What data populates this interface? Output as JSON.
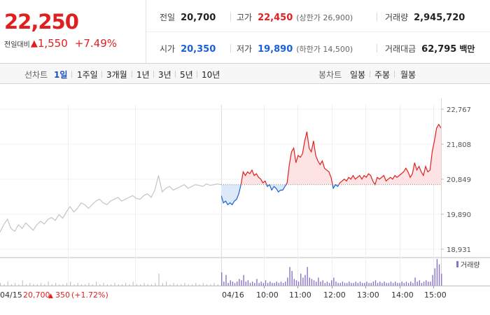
{
  "header": {
    "price": "22,250",
    "change_label": "전일대비",
    "change_arrow": "▲",
    "change_amount": "1,550",
    "change_pct": "+7.49%",
    "stats": {
      "prev_close": {
        "label": "전일",
        "value": "20,700"
      },
      "high": {
        "label": "고가",
        "value": "22,450",
        "sub": "(상한가 26,900)"
      },
      "volume": {
        "label": "거래량",
        "value": "2,945,720"
      },
      "open": {
        "label": "시가",
        "value": "20,350"
      },
      "low": {
        "label": "저가",
        "value": "19,890",
        "sub": "(하한가 14,500)"
      },
      "amount": {
        "label": "거래대금",
        "value": "62,795",
        "unit": "백만"
      }
    }
  },
  "period_bar": {
    "line_label": "선차트",
    "periods": [
      "1일",
      "1주일",
      "3개월",
      "1년",
      "3년",
      "5년",
      "10년"
    ],
    "selected": "1일",
    "candle_label": "봉차트",
    "candles": [
      "일봉",
      "주봉",
      "월봉"
    ]
  },
  "colors": {
    "up": "#e02020",
    "down": "#1a60d8",
    "prev_day_line": "#c4c4c4",
    "up_fill": "#fde3e3",
    "down_fill": "#dde9f8",
    "volume_today": "#8a72c8",
    "volume_prev": "#c4c4c4"
  },
  "chart_data": {
    "type": "line",
    "ylim": [
      18931,
      22767
    ],
    "y_ticks": [
      "22,767",
      "21,808",
      "20,849",
      "19,890",
      "18,931"
    ],
    "y_tick_values": [
      22767,
      21808,
      20849,
      19890,
      18931
    ],
    "reference_price": 20700,
    "x_ticks": [
      "04/15",
      "04/16",
      "10:00",
      "11:00",
      "12:00",
      "13:00",
      "14:00",
      "15:00"
    ],
    "prev_day_caption": {
      "price": "20,700",
      "arrow": "▲",
      "change": "350",
      "pct": "(+1.72%)"
    },
    "volume_legend": "거래량",
    "series": [
      {
        "session": "04/15",
        "values": [
          19400,
          19600,
          19750,
          19500,
          19420,
          19600,
          19500,
          19650,
          19550,
          19450,
          19600,
          19700,
          19620,
          19750,
          19800,
          19720,
          19880,
          19780,
          19950,
          20100,
          19950,
          20050,
          20200,
          20150,
          20050,
          20150,
          20250,
          20300,
          20200,
          20150,
          20250,
          20300,
          20350,
          20250,
          20300,
          20350,
          20400,
          20320,
          20300,
          20400,
          20450,
          20350,
          20550,
          20950,
          20500,
          20600,
          20650,
          20550,
          20600,
          20650,
          20700,
          20600,
          20650,
          20700,
          20680,
          20650,
          20720,
          20680,
          20700,
          20720,
          20700
        ]
      },
      {
        "session": "04/16",
        "values": [
          20400,
          20200,
          20250,
          20150,
          20200,
          20150,
          20250,
          20300,
          20450,
          20700,
          21050,
          20950,
          21050,
          21000,
          21100,
          20950,
          21000,
          20900,
          20850,
          20750,
          20800,
          20650,
          20700,
          20550,
          20650,
          20600,
          20500,
          20550,
          20550,
          20650,
          20750,
          21250,
          21600,
          21700,
          21300,
          21500,
          21450,
          21550,
          21900,
          22150,
          21700,
          21600,
          21900,
          21500,
          21350,
          21250,
          21350,
          21150,
          21100,
          21050,
          20900,
          20600,
          20700,
          20650,
          20750,
          20800,
          20850,
          20800,
          20900,
          20850,
          20950,
          20850,
          20900,
          20950,
          20850,
          20950,
          20900,
          21000,
          20950,
          20800,
          20700,
          20900,
          20850,
          20900,
          20950,
          20800,
          20850,
          20900,
          20850,
          20950,
          20900,
          20950,
          21000,
          21050,
          21150,
          21050,
          20900,
          21000,
          21300,
          21100,
          21200,
          21050,
          20950,
          21200,
          21050,
          21100,
          21600,
          21900,
          22250,
          22350,
          22250
        ]
      }
    ],
    "volume": {
      "prev": [
        2,
        1,
        3,
        1,
        2,
        1,
        4,
        1,
        2,
        1,
        1,
        2,
        1,
        3,
        1,
        2,
        1,
        1,
        2,
        3,
        1,
        2,
        1,
        1,
        2,
        1,
        3,
        1,
        2,
        1,
        1,
        2,
        1,
        1,
        2,
        1,
        3,
        1,
        1,
        2,
        1,
        1,
        2,
        9,
        2,
        3,
        1,
        2,
        1,
        1,
        2,
        1,
        1,
        2,
        1,
        2,
        1,
        1,
        2,
        1,
        3
      ],
      "today": [
        10,
        3,
        8,
        2,
        4,
        3,
        2,
        3,
        5,
        4,
        8,
        3,
        4,
        2,
        3,
        2,
        5,
        2,
        3,
        2,
        4,
        2,
        3,
        2,
        2,
        3,
        2,
        3,
        2,
        3,
        6,
        14,
        11,
        5,
        4,
        3,
        9,
        6,
        8,
        14,
        6,
        5,
        4,
        3,
        6,
        3,
        4,
        2,
        3,
        2,
        4,
        6,
        3,
        2,
        2,
        3,
        2,
        2,
        3,
        2,
        2,
        3,
        2,
        3,
        2,
        2,
        3,
        2,
        2,
        3,
        4,
        2,
        3,
        2,
        3,
        2,
        2,
        3,
        2,
        3,
        2,
        2,
        3,
        2,
        3,
        2,
        3,
        2,
        6,
        3,
        4,
        2,
        3,
        4,
        3,
        3,
        8,
        13,
        20,
        16,
        9
      ]
    }
  }
}
